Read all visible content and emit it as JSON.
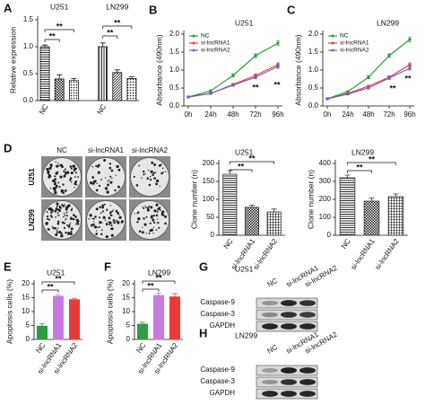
{
  "panel_labels": [
    "A",
    "B",
    "C",
    "D",
    "E",
    "F",
    "G",
    "H"
  ],
  "chart_data": [
    {
      "type": "bar",
      "groups": [
        "U251",
        "LN299"
      ],
      "ylabel": "Relative expression",
      "categories": [
        "NC",
        null,
        null,
        "NC",
        null,
        null
      ],
      "values": [
        1.0,
        0.4,
        0.37,
        1.0,
        0.52,
        0.41
      ],
      "errors": [
        0.03,
        0.08,
        0.04,
        0.07,
        0.05,
        0.03
      ],
      "color": "#111111",
      "ylim": [
        0,
        1.5
      ],
      "yticks": [
        {
          "value": 0,
          "label": "0.0"
        },
        {
          "value": 0.5,
          "label": "0.5"
        },
        {
          "value": 1,
          "label": "1.0"
        },
        {
          "value": 1.5,
          "label": "1.5"
        }
      ],
      "annotations": [
        "**",
        "**",
        "**",
        "**"
      ]
    },
    {
      "type": "line",
      "title": "U251",
      "ylabel": "Absorbance (490nm)",
      "x": [
        "0h",
        "24h",
        "48h",
        "72h",
        "96h"
      ],
      "series": [
        {
          "name": "NC",
          "color": "#2a9d3a",
          "values": [
            0.25,
            0.42,
            0.85,
            1.4,
            1.75
          ],
          "errors": [
            0.02,
            0.03,
            0.04,
            0.05,
            0.07
          ]
        },
        {
          "name": "si-lncRNA1",
          "color": "#e8413c",
          "values": [
            0.25,
            0.35,
            0.6,
            0.85,
            1.15
          ],
          "errors": [
            0.02,
            0.02,
            0.03,
            0.04,
            0.05
          ]
        },
        {
          "name": "si-lncRNA2",
          "color": "#7a5cc9",
          "values": [
            0.25,
            0.35,
            0.58,
            0.8,
            1.1
          ],
          "errors": [
            0.02,
            0.02,
            0.03,
            0.04,
            0.05
          ]
        }
      ],
      "ylim": [
        0,
        2
      ],
      "yticks": [
        {
          "value": 0,
          "label": "0.0"
        },
        {
          "value": 0.5,
          "label": "0.5"
        },
        {
          "value": 1,
          "label": "1.0"
        },
        {
          "value": 1.5,
          "label": "1.5"
        },
        {
          "value": 2,
          "label": "2.0"
        }
      ],
      "annotations": [
        "**",
        "**"
      ]
    },
    {
      "type": "line",
      "title": "LN299",
      "ylabel": "Absorbance (490nm)",
      "x": [
        "0h",
        "24h",
        "48h",
        "72h",
        "96h"
      ],
      "series": [
        {
          "name": "NC",
          "color": "#2a9d3a",
          "values": [
            0.2,
            0.4,
            0.8,
            1.4,
            1.85
          ],
          "errors": [
            0.02,
            0.03,
            0.04,
            0.05,
            0.07
          ]
        },
        {
          "name": "si-lncRNA1",
          "color": "#e8413c",
          "values": [
            0.2,
            0.35,
            0.55,
            0.8,
            1.15
          ],
          "errors": [
            0.02,
            0.02,
            0.03,
            0.04,
            0.05
          ]
        },
        {
          "name": "si-lncRNA2",
          "color": "#7a5cc9",
          "values": [
            0.2,
            0.33,
            0.5,
            0.78,
            1.05
          ],
          "errors": [
            0.02,
            0.02,
            0.03,
            0.04,
            0.05
          ]
        }
      ],
      "ylim": [
        0,
        2
      ],
      "yticks": [
        {
          "value": 0,
          "label": "0.0"
        },
        {
          "value": 0.5,
          "label": "0.5"
        },
        {
          "value": 1,
          "label": "1.0"
        },
        {
          "value": 1.5,
          "label": "1.5"
        },
        {
          "value": 2,
          "label": "2.0"
        }
      ],
      "annotations": [
        "**",
        "**"
      ]
    },
    {
      "type": "bar",
      "title": "U251",
      "ylabel": "Clone number (n)",
      "categories": [
        "NC",
        "si-lncRNA1",
        "si-lncRNA2"
      ],
      "values": [
        170,
        78,
        65
      ],
      "errors": [
        10,
        6,
        8
      ],
      "color": "#333333",
      "ylim": [
        0,
        200
      ],
      "yticks": [
        0,
        50,
        100,
        150,
        200
      ],
      "annotations": [
        "**",
        "**"
      ]
    },
    {
      "type": "bar",
      "title": "LN299",
      "ylabel": "Clone number (n)",
      "categories": [
        "NC",
        "si-lncRNA1",
        "si-lncRNA2"
      ],
      "values": [
        320,
        190,
        215
      ],
      "errors": [
        15,
        18,
        15
      ],
      "color": "#333333",
      "ylim": [
        0,
        400
      ],
      "yticks": [
        0,
        100,
        200,
        300,
        400
      ],
      "annotations": [
        "**",
        "**"
      ]
    },
    {
      "type": "bar",
      "title": "U251",
      "ylabel": "Apoptosis cells (%)",
      "categories": [
        "NC",
        "si-lncRNA1",
        "si-lncRNA2"
      ],
      "values": [
        4.8,
        15.5,
        14.3
      ],
      "errors": [
        0.8,
        0.6,
        0.5
      ],
      "colors": [
        "#2e9b45",
        "#c77be0",
        "#e83a3a"
      ],
      "ylim": [
        0,
        20
      ],
      "yticks": [
        0,
        5,
        10,
        15,
        20
      ],
      "annotations": [
        "**",
        "**"
      ]
    },
    {
      "type": "bar",
      "title": "LN299",
      "ylabel": "Apoptosis cells (%)",
      "categories": [
        "NC",
        "si-lncRNA1",
        "si-lncRNA2"
      ],
      "values": [
        5.5,
        15.8,
        15.3
      ],
      "errors": [
        0.7,
        0.8,
        1.2
      ],
      "colors": [
        "#2e9b45",
        "#c77be0",
        "#e83a3a"
      ],
      "ylim": [
        0,
        20
      ],
      "yticks": [
        0,
        5,
        10,
        15,
        20
      ],
      "annotations": [
        "**",
        "**"
      ]
    }
  ],
  "colony": {
    "columns": [
      "NC",
      "si-lncRNA1",
      "si-lncRNA2"
    ],
    "rows": [
      "U251",
      "LN299"
    ]
  },
  "blots": [
    {
      "title": "U251",
      "columns": [
        "NC",
        "si-lncRNA1",
        "si-lncRNA2"
      ],
      "rows": [
        "Caspase-9",
        "Caspase-3",
        "GAPDH"
      ]
    },
    {
      "title": "LN299",
      "columns": [
        "NC",
        "si-lncRNA1",
        "si-lncRNA2"
      ],
      "rows": [
        "Caspase-9",
        "Caspase-3",
        "GAPDH"
      ]
    }
  ]
}
